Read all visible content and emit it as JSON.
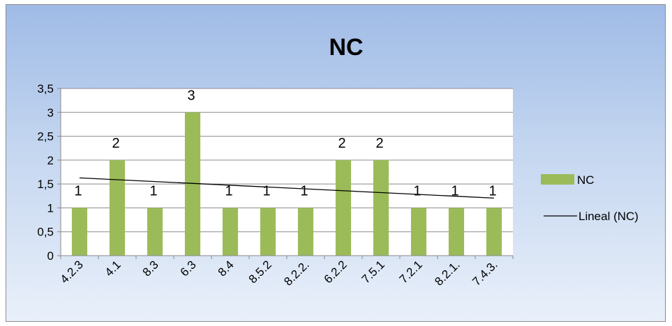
{
  "chart_data": {
    "type": "bar",
    "title": "NC",
    "categories": [
      "4.2.3",
      "4.1",
      "8.3",
      "6.3",
      "8.4",
      "8.5.2",
      "8.2.2.",
      "6.2.2",
      "7.5.1",
      "7.2.1",
      "8.2.1.",
      "7.4.3."
    ],
    "series": [
      {
        "name": "NC",
        "values": [
          1,
          2,
          1,
          3,
          1,
          1,
          1,
          2,
          2,
          1,
          1,
          1
        ],
        "color": "#9bbb59"
      }
    ],
    "trendline": {
      "name": "Lineal (NC)",
      "type": "linear",
      "color": "#000000"
    },
    "data_labels": [
      "1",
      "2",
      "1",
      "3",
      "1",
      "1",
      "1",
      "2",
      "2",
      "1",
      "1",
      "1"
    ],
    "ylim": [
      0,
      3.5
    ],
    "yticks": [
      "0",
      "0,5",
      "1",
      "1,5",
      "2",
      "2,5",
      "3",
      "3,5"
    ],
    "grid": true,
    "legend_position": "right"
  }
}
